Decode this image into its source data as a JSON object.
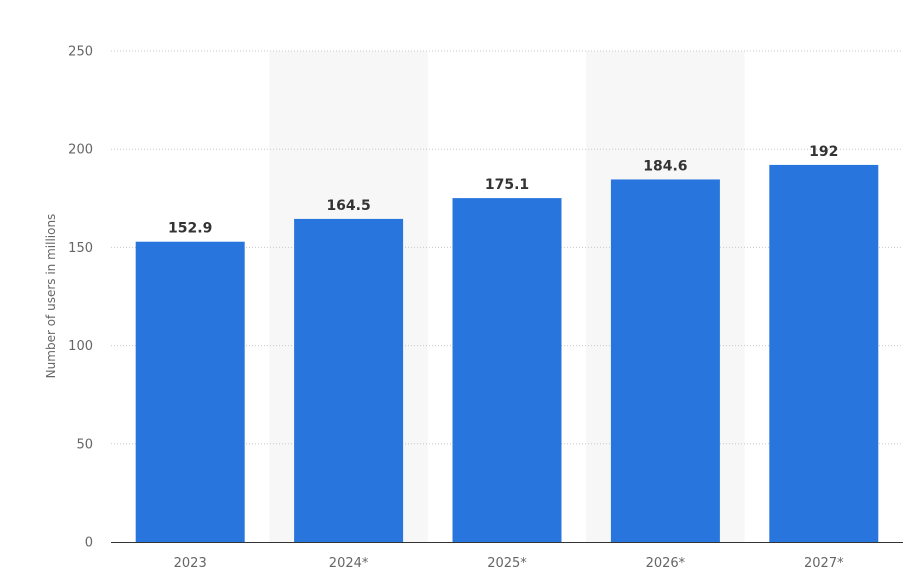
{
  "chart_data": {
    "type": "bar",
    "title": "",
    "xlabel": "",
    "ylabel": "Number of users in millions",
    "categories": [
      "2023",
      "2024*",
      "2025*",
      "2026*",
      "2027*"
    ],
    "values": [
      152.9,
      164.5,
      175.1,
      184.6,
      192
    ],
    "value_labels": [
      "152.9",
      "164.5",
      "175.1",
      "184.6",
      "192"
    ],
    "ylim": [
      0,
      250
    ],
    "yticks": [
      0,
      50,
      100,
      150,
      200,
      250
    ],
    "grid": true,
    "bar_color": "#2876dd",
    "band_color": "#f7f7f7"
  }
}
